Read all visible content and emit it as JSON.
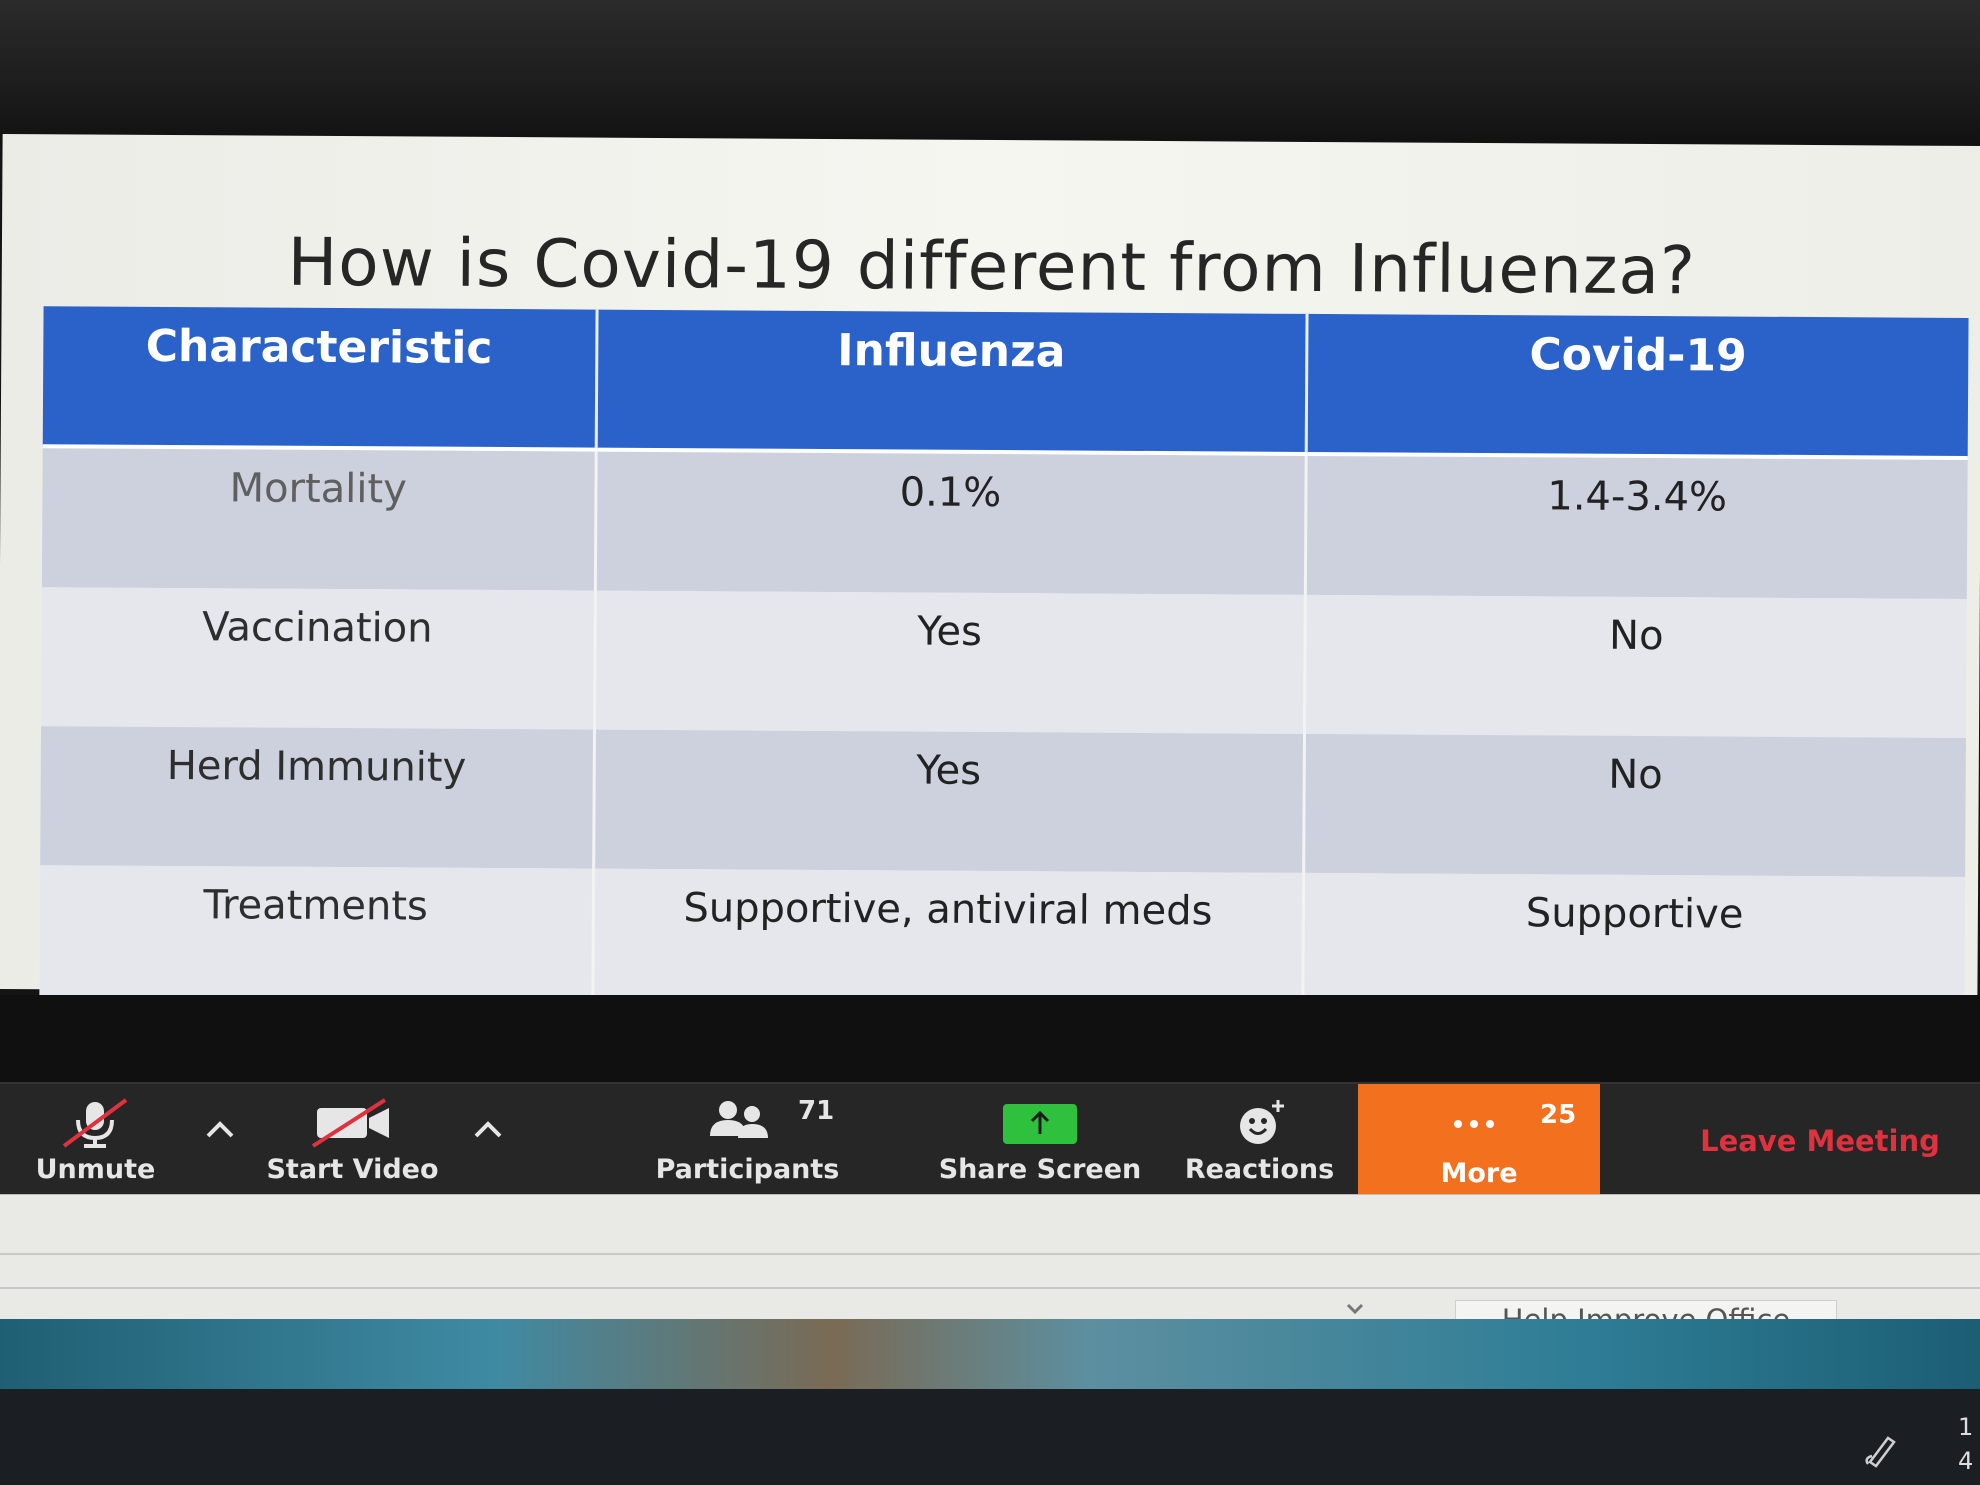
{
  "slide": {
    "title": "How is Covid-19 different from Influenza?",
    "table": {
      "headers": [
        "Characteristic",
        "Influenza",
        "Covid-19"
      ],
      "rows": [
        [
          "Mortality",
          "0.1%",
          "1.4-3.4%"
        ],
        [
          "Vaccination",
          "Yes",
          "No"
        ],
        [
          "Herd Immunity",
          "Yes",
          "No"
        ],
        [
          "Treatments",
          "Supportive, antiviral meds",
          "Supportive"
        ]
      ]
    }
  },
  "toolbar": {
    "unmute_label": "Unmute",
    "start_video_label": "Start Video",
    "participants_label": "Participants",
    "participants_count": "71",
    "share_screen_label": "Share Screen",
    "reactions_label": "Reactions",
    "more_label": "More",
    "more_count": "25",
    "leave_label": "Leave Meeting",
    "colors": {
      "more_bg": "#f2701e",
      "leave_text": "#e0323e",
      "share_icon": "#2fc13d",
      "header_blue": "#2a62c9"
    }
  },
  "office": {
    "help_label": "Help Improve Office"
  },
  "taskbar": {
    "clock_line1": "1",
    "clock_line2": "4"
  }
}
